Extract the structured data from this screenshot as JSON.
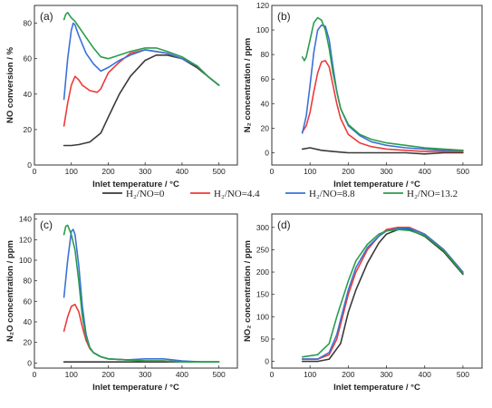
{
  "colors": {
    "H2/NO=0": "#3a3a3a",
    "H2/NO=4.4": "#ee3a3a",
    "H2/NO=8.8": "#3a72d8",
    "H2/NO=13.2": "#2a9d4c"
  },
  "legend": [
    "H₂/NO=0",
    "H₂/NO=4.4",
    "H₂/NO=8.8",
    "H₂/NO=13.2"
  ],
  "chart_data": [
    {
      "panel": "(a)",
      "type": "line",
      "xlabel": "Inlet temperature / °C",
      "ylabel": "NO conversion / %",
      "xlim": [
        0,
        550
      ],
      "ylim": [
        0,
        90
      ],
      "xticks": [
        0,
        100,
        200,
        300,
        400,
        500
      ],
      "yticks": [
        0,
        20,
        40,
        60,
        80
      ],
      "series": [
        {
          "name": "H2/NO=0",
          "x": [
            80,
            100,
            120,
            150,
            180,
            200,
            230,
            260,
            300,
            330,
            360,
            400,
            440,
            470,
            500
          ],
          "y": [
            11,
            11,
            11.5,
            13,
            18,
            27,
            40,
            50,
            59,
            62,
            62,
            60,
            55,
            50,
            45
          ]
        },
        {
          "name": "H2/NO=4.4",
          "x": [
            80,
            90,
            100,
            110,
            120,
            130,
            150,
            170,
            180,
            200,
            230,
            260,
            300,
            330,
            360,
            400,
            440,
            470,
            500
          ],
          "y": [
            22,
            35,
            45,
            50,
            48,
            45,
            42,
            41,
            43,
            52,
            58,
            63,
            65,
            64,
            63,
            60,
            56,
            50,
            45
          ]
        },
        {
          "name": "H2/NO=8.8",
          "x": [
            80,
            90,
            100,
            105,
            110,
            120,
            140,
            160,
            180,
            200,
            230,
            260,
            300,
            330,
            360,
            400,
            440,
            470,
            500
          ],
          "y": [
            37,
            60,
            76,
            80,
            79,
            73,
            63,
            57,
            53,
            55,
            59,
            62,
            65,
            64,
            63,
            60,
            56,
            50,
            45
          ]
        },
        {
          "name": "H2/NO=13.2",
          "x": [
            80,
            85,
            90,
            100,
            110,
            120,
            140,
            160,
            180,
            200,
            230,
            260,
            300,
            330,
            360,
            400,
            440,
            470,
            500
          ],
          "y": [
            82,
            85,
            86,
            83,
            81,
            78,
            72,
            66,
            61,
            60,
            62,
            64,
            66,
            66,
            64,
            61,
            56,
            50,
            45
          ]
        }
      ]
    },
    {
      "panel": "(b)",
      "type": "line",
      "xlabel": "Inlet temperature / °C",
      "ylabel": "N₂ concentration / ppm",
      "xlim": [
        0,
        550
      ],
      "ylim": [
        -10,
        120
      ],
      "xticks": [
        0,
        100,
        200,
        300,
        400,
        500
      ],
      "yticks": [
        0,
        20,
        40,
        60,
        80,
        100,
        120
      ],
      "series": [
        {
          "name": "H2/NO=0",
          "x": [
            80,
            100,
            130,
            160,
            200,
            250,
            300,
            350,
            400,
            450,
            500
          ],
          "y": [
            3,
            4,
            2,
            1,
            0,
            0,
            0,
            0,
            -1,
            0,
            0
          ]
        },
        {
          "name": "H2/NO=4.4",
          "x": [
            80,
            90,
            100,
            110,
            120,
            130,
            140,
            150,
            160,
            170,
            180,
            200,
            230,
            260,
            300,
            350,
            400,
            450,
            500
          ],
          "y": [
            17,
            22,
            33,
            50,
            65,
            74,
            75,
            70,
            55,
            40,
            28,
            15,
            8,
            5,
            3,
            2,
            1,
            1,
            1
          ]
        },
        {
          "name": "H2/NO=8.8",
          "x": [
            80,
            90,
            100,
            110,
            120,
            130,
            140,
            150,
            160,
            170,
            180,
            200,
            230,
            260,
            300,
            350,
            400,
            450,
            500
          ],
          "y": [
            16,
            30,
            55,
            82,
            100,
            104,
            103,
            92,
            70,
            50,
            36,
            22,
            14,
            9,
            6,
            4,
            3,
            2,
            2
          ]
        },
        {
          "name": "H2/NO=13.2",
          "x": [
            80,
            85,
            90,
            100,
            110,
            120,
            130,
            140,
            150,
            160,
            170,
            180,
            200,
            230,
            260,
            300,
            350,
            400,
            450,
            500
          ],
          "y": [
            78,
            75,
            78,
            92,
            106,
            110,
            108,
            100,
            85,
            65,
            50,
            36,
            23,
            15,
            11,
            8,
            6,
            4,
            3,
            2
          ]
        }
      ]
    },
    {
      "panel": "(c)",
      "type": "line",
      "xlabel": "Inlet temperature / °C",
      "ylabel": "N₂O concentration / ppm",
      "xlim": [
        0,
        550
      ],
      "ylim": [
        -5,
        145
      ],
      "xticks": [
        0,
        100,
        200,
        300,
        400,
        500
      ],
      "yticks": [
        0,
        20,
        40,
        60,
        80,
        100,
        120,
        140
      ],
      "series": [
        {
          "name": "H2/NO=0",
          "x": [
            80,
            150,
            200,
            300,
            400,
            500
          ],
          "y": [
            1,
            1,
            1,
            1,
            1,
            1
          ]
        },
        {
          "name": "H2/NO=4.4",
          "x": [
            80,
            90,
            100,
            110,
            120,
            130,
            140,
            150,
            160,
            180,
            200,
            250,
            300,
            350,
            400,
            450,
            500
          ],
          "y": [
            31,
            45,
            55,
            57,
            50,
            35,
            22,
            14,
            10,
            6,
            4,
            3,
            2,
            2,
            1,
            1,
            1
          ]
        },
        {
          "name": "H2/NO=8.8",
          "x": [
            80,
            90,
            100,
            105,
            110,
            120,
            130,
            140,
            150,
            160,
            180,
            200,
            250,
            300,
            350,
            400,
            450,
            500
          ],
          "y": [
            64,
            100,
            128,
            130,
            125,
            95,
            55,
            28,
            15,
            10,
            6,
            4,
            3,
            4,
            4,
            2,
            1,
            1
          ]
        },
        {
          "name": "H2/NO=13.2",
          "x": [
            80,
            85,
            90,
            100,
            110,
            120,
            130,
            140,
            150,
            160,
            180,
            200,
            250,
            300,
            350,
            400,
            450,
            500
          ],
          "y": [
            125,
            133,
            134,
            125,
            110,
            80,
            45,
            25,
            15,
            10,
            6,
            4,
            3,
            2,
            2,
            1,
            1,
            1
          ]
        }
      ]
    },
    {
      "panel": "(d)",
      "type": "line",
      "xlabel": "Inlet temperature / °C",
      "ylabel": "NO₂ concentration / ppm",
      "xlim": [
        0,
        550
      ],
      "ylim": [
        -15,
        330
      ],
      "xticks": [
        0,
        100,
        200,
        300,
        400,
        500
      ],
      "yticks": [
        0,
        50,
        100,
        150,
        200,
        250,
        300
      ],
      "series": [
        {
          "name": "H2/NO=0",
          "x": [
            80,
            120,
            150,
            180,
            200,
            220,
            250,
            280,
            300,
            330,
            360,
            400,
            450,
            500
          ],
          "y": [
            0,
            0,
            5,
            40,
            110,
            160,
            220,
            265,
            285,
            295,
            295,
            280,
            245,
            195
          ]
        },
        {
          "name": "H2/NO=4.4",
          "x": [
            80,
            120,
            150,
            170,
            200,
            220,
            250,
            280,
            300,
            330,
            360,
            400,
            450,
            500
          ],
          "y": [
            5,
            5,
            15,
            50,
            150,
            200,
            250,
            280,
            295,
            300,
            300,
            285,
            250,
            200
          ]
        },
        {
          "name": "H2/NO=8.8",
          "x": [
            80,
            120,
            150,
            170,
            200,
            220,
            250,
            280,
            300,
            330,
            360,
            400,
            450,
            500
          ],
          "y": [
            5,
            5,
            20,
            60,
            160,
            210,
            255,
            280,
            292,
            298,
            298,
            285,
            250,
            200
          ]
        },
        {
          "name": "H2/NO=13.2",
          "x": [
            80,
            120,
            150,
            170,
            200,
            220,
            250,
            280,
            300,
            330,
            360,
            400,
            450,
            500
          ],
          "y": [
            10,
            15,
            40,
            100,
            180,
            225,
            262,
            285,
            292,
            295,
            293,
            282,
            248,
            197
          ]
        }
      ]
    }
  ]
}
